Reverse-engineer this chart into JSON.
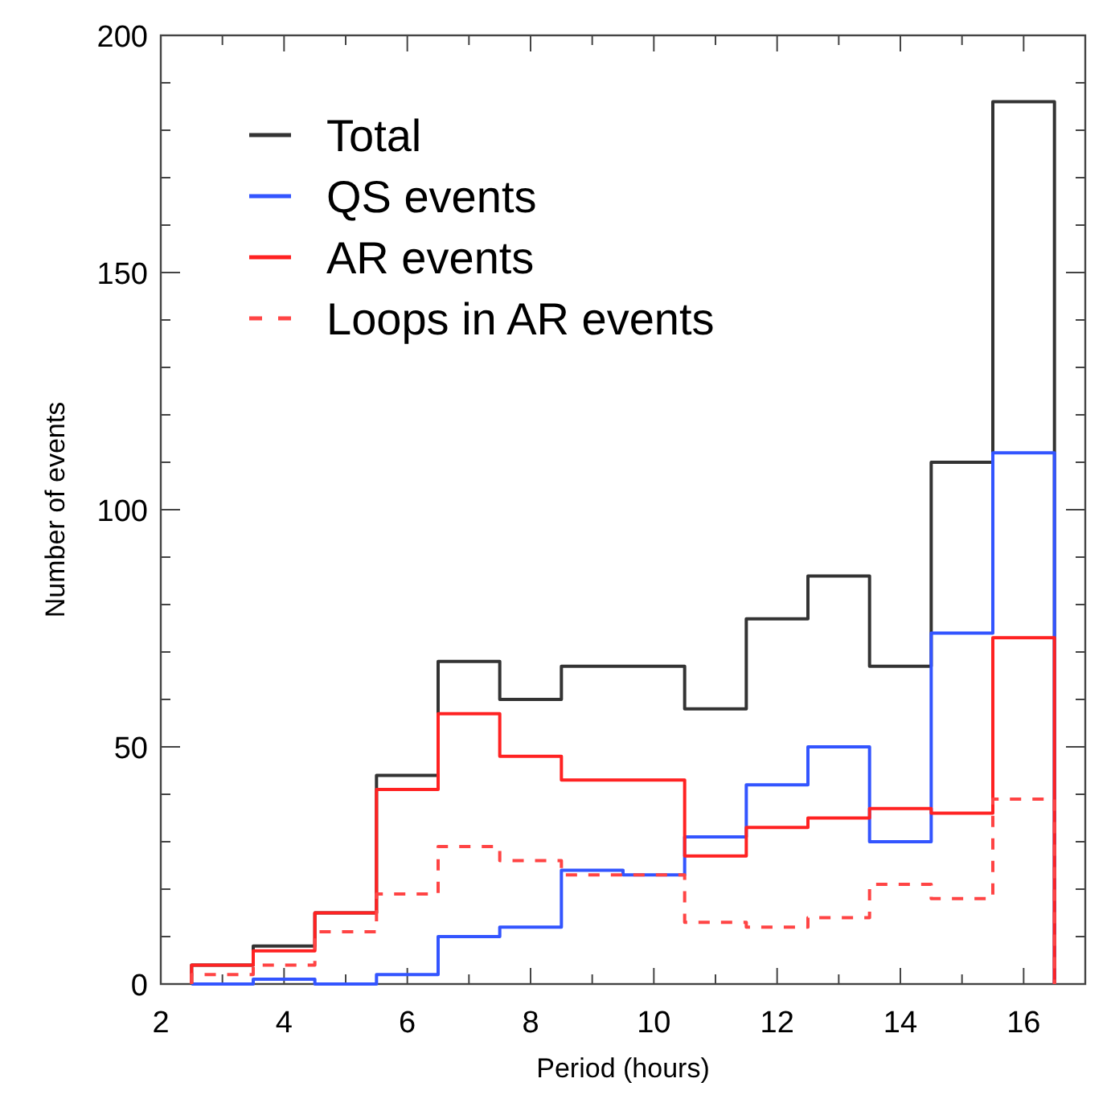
{
  "chart_data": {
    "type": "histogram",
    "xlabel": "Period (hours)",
    "ylabel": "Number of events",
    "bins": [
      2.5,
      3.5,
      4.5,
      5.5,
      6.5,
      7.5,
      8.5,
      9.5,
      10.5,
      11.5,
      12.5,
      13.5,
      14.5,
      15.5,
      16.5
    ],
    "series": [
      {
        "name": "Total",
        "color": "#333333",
        "values": [
          4,
          8,
          15,
          44,
          68,
          60,
          67,
          67,
          58,
          77,
          86,
          67,
          110,
          186
        ]
      },
      {
        "name": "QS events",
        "color": "#3355ff",
        "values": [
          0,
          1,
          0,
          2,
          10,
          12,
          24,
          23,
          31,
          42,
          50,
          30,
          74,
          112
        ]
      },
      {
        "name": "AR events",
        "color": "#ff2222",
        "values": [
          4,
          7,
          15,
          41,
          57,
          48,
          43,
          43,
          27,
          33,
          35,
          37,
          36,
          73
        ]
      },
      {
        "name": "Loops in AR events",
        "color": "#ff4444",
        "line_style": "dashed",
        "values": [
          2,
          4,
          11,
          19,
          29,
          26,
          23,
          23,
          13,
          12,
          14,
          21,
          18,
          39
        ]
      }
    ],
    "xlim": [
      2,
      17
    ],
    "xticks": [
      2,
      {
        "value": 3,
        "label": null
      },
      4,
      {
        "value": 5,
        "label": null
      },
      6,
      {
        "value": 7,
        "label": null
      },
      8,
      {
        "value": 9,
        "label": null
      },
      10,
      {
        "value": 11,
        "label": null
      },
      12,
      {
        "value": 13,
        "label": null
      },
      14,
      {
        "value": 15,
        "label": null
      },
      16,
      {
        "value": 17,
        "label": null
      }
    ],
    "ylim": [
      0,
      200
    ],
    "yticks": [
      0,
      {
        "value": 10,
        "label": null
      },
      {
        "value": 20,
        "label": null
      },
      {
        "value": 30,
        "label": null
      },
      {
        "value": 40,
        "label": null
      },
      50,
      {
        "value": 60,
        "label": null
      },
      {
        "value": 70,
        "label": null
      },
      {
        "value": 80,
        "label": null
      },
      {
        "value": 90,
        "label": null
      },
      100,
      {
        "value": 110,
        "label": null
      },
      {
        "value": 120,
        "label": null
      },
      {
        "value": 130,
        "label": null
      },
      {
        "value": 140,
        "label": null
      },
      150,
      {
        "value": 160,
        "label": null
      },
      {
        "value": 170,
        "label": null
      },
      {
        "value": 180,
        "label": null
      },
      {
        "value": 190,
        "label": null
      },
      200
    ],
    "legend": "top left"
  }
}
